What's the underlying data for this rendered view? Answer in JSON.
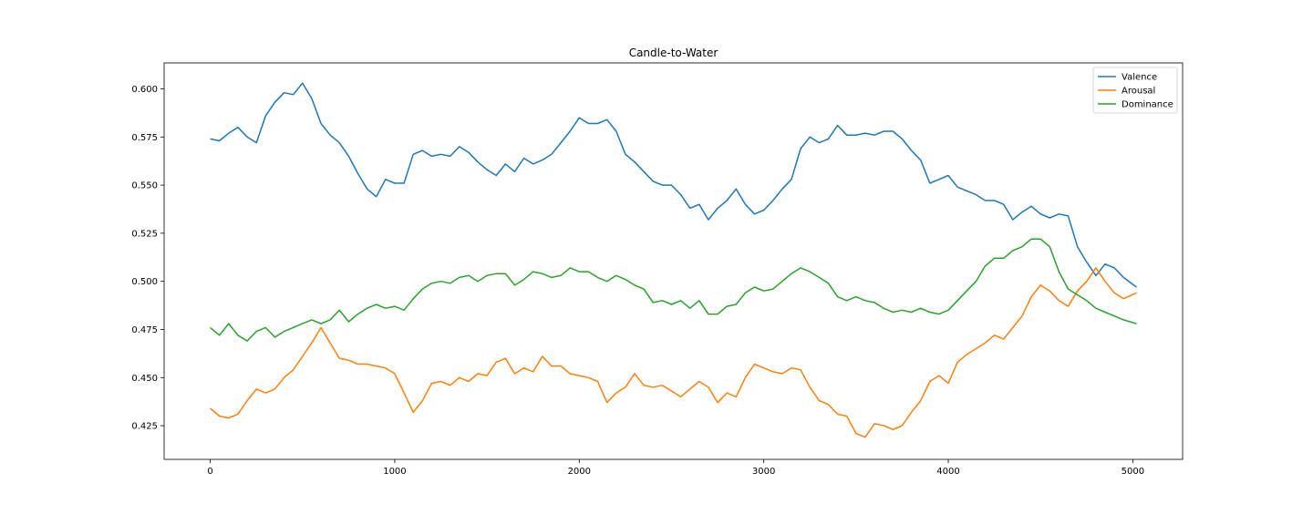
{
  "chart_data": {
    "type": "line",
    "title": "Candle-to-Water",
    "xlabel": "",
    "ylabel": "",
    "xlim": [
      -250,
      5270
    ],
    "ylim": [
      0.4075,
      0.6135
    ],
    "xticks": [
      0,
      1000,
      2000,
      3000,
      4000,
      5000
    ],
    "xtick_labels": [
      "0",
      "1000",
      "2000",
      "3000",
      "4000",
      "5000"
    ],
    "yticks": [
      0.425,
      0.45,
      0.475,
      0.5,
      0.525,
      0.55,
      0.575,
      0.6
    ],
    "ytick_labels": [
      "0.425",
      "0.450",
      "0.475",
      "0.500",
      "0.525",
      "0.550",
      "0.575",
      "0.600"
    ],
    "grid": false,
    "legend_position": "top-right",
    "series": [
      {
        "name": "Valence",
        "color": "#1f77b4",
        "x": [
          0,
          50,
          100,
          150,
          200,
          250,
          300,
          350,
          400,
          450,
          500,
          550,
          600,
          650,
          700,
          750,
          800,
          850,
          900,
          950,
          1000,
          1050,
          1100,
          1150,
          1200,
          1250,
          1300,
          1350,
          1400,
          1450,
          1500,
          1550,
          1600,
          1650,
          1700,
          1750,
          1800,
          1850,
          1900,
          1950,
          2000,
          2050,
          2100,
          2150,
          2200,
          2250,
          2300,
          2350,
          2400,
          2450,
          2500,
          2550,
          2600,
          2650,
          2700,
          2750,
          2800,
          2850,
          2900,
          2950,
          3000,
          3050,
          3100,
          3150,
          3200,
          3250,
          3300,
          3350,
          3400,
          3450,
          3500,
          3550,
          3600,
          3650,
          3700,
          3750,
          3800,
          3850,
          3900,
          3950,
          4000,
          4050,
          4100,
          4150,
          4200,
          4250,
          4300,
          4350,
          4400,
          4450,
          4500,
          4550,
          4600,
          4650,
          4700,
          4750,
          4800,
          4850,
          4900,
          4950,
          5020
        ],
        "values": [
          0.574,
          0.573,
          0.577,
          0.58,
          0.575,
          0.572,
          0.586,
          0.593,
          0.598,
          0.597,
          0.603,
          0.595,
          0.582,
          0.576,
          0.572,
          0.565,
          0.556,
          0.548,
          0.544,
          0.553,
          0.551,
          0.551,
          0.566,
          0.568,
          0.565,
          0.566,
          0.565,
          0.57,
          0.567,
          0.562,
          0.558,
          0.555,
          0.561,
          0.557,
          0.564,
          0.561,
          0.563,
          0.566,
          0.572,
          0.578,
          0.585,
          0.582,
          0.582,
          0.584,
          0.578,
          0.566,
          0.562,
          0.557,
          0.552,
          0.55,
          0.55,
          0.545,
          0.538,
          0.54,
          0.532,
          0.538,
          0.542,
          0.548,
          0.54,
          0.535,
          0.537,
          0.542,
          0.548,
          0.553,
          0.569,
          0.575,
          0.572,
          0.574,
          0.581,
          0.576,
          0.576,
          0.577,
          0.576,
          0.578,
          0.578,
          0.574,
          0.568,
          0.563,
          0.551,
          0.553,
          0.555,
          0.549,
          0.547,
          0.545,
          0.542,
          0.542,
          0.54,
          0.532,
          0.536,
          0.539,
          0.535,
          0.533,
          0.535,
          0.534,
          0.518,
          0.51,
          0.503,
          0.509,
          0.507,
          0.502,
          0.497
        ]
      },
      {
        "name": "Arousal",
        "color": "#ff7f0e",
        "x": [
          0,
          50,
          100,
          150,
          200,
          250,
          300,
          350,
          400,
          450,
          500,
          550,
          600,
          650,
          700,
          750,
          800,
          850,
          900,
          950,
          1000,
          1050,
          1100,
          1150,
          1200,
          1250,
          1300,
          1350,
          1400,
          1450,
          1500,
          1550,
          1600,
          1650,
          1700,
          1750,
          1800,
          1850,
          1900,
          1950,
          2000,
          2050,
          2100,
          2150,
          2200,
          2250,
          2300,
          2350,
          2400,
          2450,
          2500,
          2550,
          2600,
          2650,
          2700,
          2750,
          2800,
          2850,
          2900,
          2950,
          3000,
          3050,
          3100,
          3150,
          3200,
          3250,
          3300,
          3350,
          3400,
          3450,
          3500,
          3550,
          3600,
          3650,
          3700,
          3750,
          3800,
          3850,
          3900,
          3950,
          4000,
          4050,
          4100,
          4150,
          4200,
          4250,
          4300,
          4350,
          4400,
          4450,
          4500,
          4550,
          4600,
          4650,
          4700,
          4750,
          4800,
          4850,
          4900,
          4950,
          5020
        ],
        "values": [
          0.434,
          0.43,
          0.429,
          0.431,
          0.438,
          0.444,
          0.442,
          0.444,
          0.45,
          0.454,
          0.461,
          0.468,
          0.476,
          0.468,
          0.46,
          0.459,
          0.457,
          0.457,
          0.456,
          0.455,
          0.452,
          0.442,
          0.432,
          0.438,
          0.447,
          0.448,
          0.446,
          0.45,
          0.448,
          0.452,
          0.451,
          0.458,
          0.46,
          0.452,
          0.455,
          0.453,
          0.461,
          0.456,
          0.456,
          0.452,
          0.451,
          0.45,
          0.448,
          0.437,
          0.442,
          0.445,
          0.452,
          0.446,
          0.445,
          0.446,
          0.443,
          0.44,
          0.444,
          0.448,
          0.445,
          0.437,
          0.442,
          0.44,
          0.45,
          0.457,
          0.455,
          0.453,
          0.452,
          0.455,
          0.454,
          0.445,
          0.438,
          0.436,
          0.431,
          0.43,
          0.421,
          0.419,
          0.426,
          0.425,
          0.423,
          0.425,
          0.432,
          0.438,
          0.448,
          0.451,
          0.447,
          0.458,
          0.462,
          0.465,
          0.468,
          0.472,
          0.47,
          0.476,
          0.482,
          0.492,
          0.498,
          0.495,
          0.49,
          0.487,
          0.495,
          0.5,
          0.507,
          0.5,
          0.494,
          0.491,
          0.494
        ]
      },
      {
        "name": "Dominance",
        "color": "#2ca02c",
        "x": [
          0,
          50,
          100,
          150,
          200,
          250,
          300,
          350,
          400,
          450,
          500,
          550,
          600,
          650,
          700,
          750,
          800,
          850,
          900,
          950,
          1000,
          1050,
          1100,
          1150,
          1200,
          1250,
          1300,
          1350,
          1400,
          1450,
          1500,
          1550,
          1600,
          1650,
          1700,
          1750,
          1800,
          1850,
          1900,
          1950,
          2000,
          2050,
          2100,
          2150,
          2200,
          2250,
          2300,
          2350,
          2400,
          2450,
          2500,
          2550,
          2600,
          2650,
          2700,
          2750,
          2800,
          2850,
          2900,
          2950,
          3000,
          3050,
          3100,
          3150,
          3200,
          3250,
          3300,
          3350,
          3400,
          3450,
          3500,
          3550,
          3600,
          3650,
          3700,
          3750,
          3800,
          3850,
          3900,
          3950,
          4000,
          4050,
          4100,
          4150,
          4200,
          4250,
          4300,
          4350,
          4400,
          4450,
          4500,
          4550,
          4600,
          4650,
          4700,
          4750,
          4800,
          4850,
          4900,
          4950,
          5020
        ],
        "values": [
          0.476,
          0.472,
          0.478,
          0.472,
          0.469,
          0.474,
          0.476,
          0.471,
          0.474,
          0.476,
          0.478,
          0.48,
          0.478,
          0.48,
          0.485,
          0.479,
          0.483,
          0.486,
          0.488,
          0.486,
          0.487,
          0.485,
          0.491,
          0.496,
          0.499,
          0.5,
          0.499,
          0.502,
          0.503,
          0.5,
          0.503,
          0.504,
          0.504,
          0.498,
          0.501,
          0.505,
          0.504,
          0.502,
          0.503,
          0.507,
          0.505,
          0.505,
          0.502,
          0.5,
          0.503,
          0.501,
          0.498,
          0.496,
          0.489,
          0.49,
          0.488,
          0.49,
          0.486,
          0.49,
          0.483,
          0.483,
          0.487,
          0.488,
          0.494,
          0.497,
          0.495,
          0.496,
          0.5,
          0.504,
          0.507,
          0.505,
          0.502,
          0.499,
          0.492,
          0.49,
          0.492,
          0.49,
          0.489,
          0.486,
          0.484,
          0.485,
          0.484,
          0.486,
          0.484,
          0.483,
          0.485,
          0.49,
          0.495,
          0.5,
          0.508,
          0.512,
          0.512,
          0.516,
          0.518,
          0.522,
          0.522,
          0.518,
          0.505,
          0.496,
          0.493,
          0.49,
          0.486,
          0.484,
          0.482,
          0.48,
          0.478
        ]
      }
    ]
  }
}
